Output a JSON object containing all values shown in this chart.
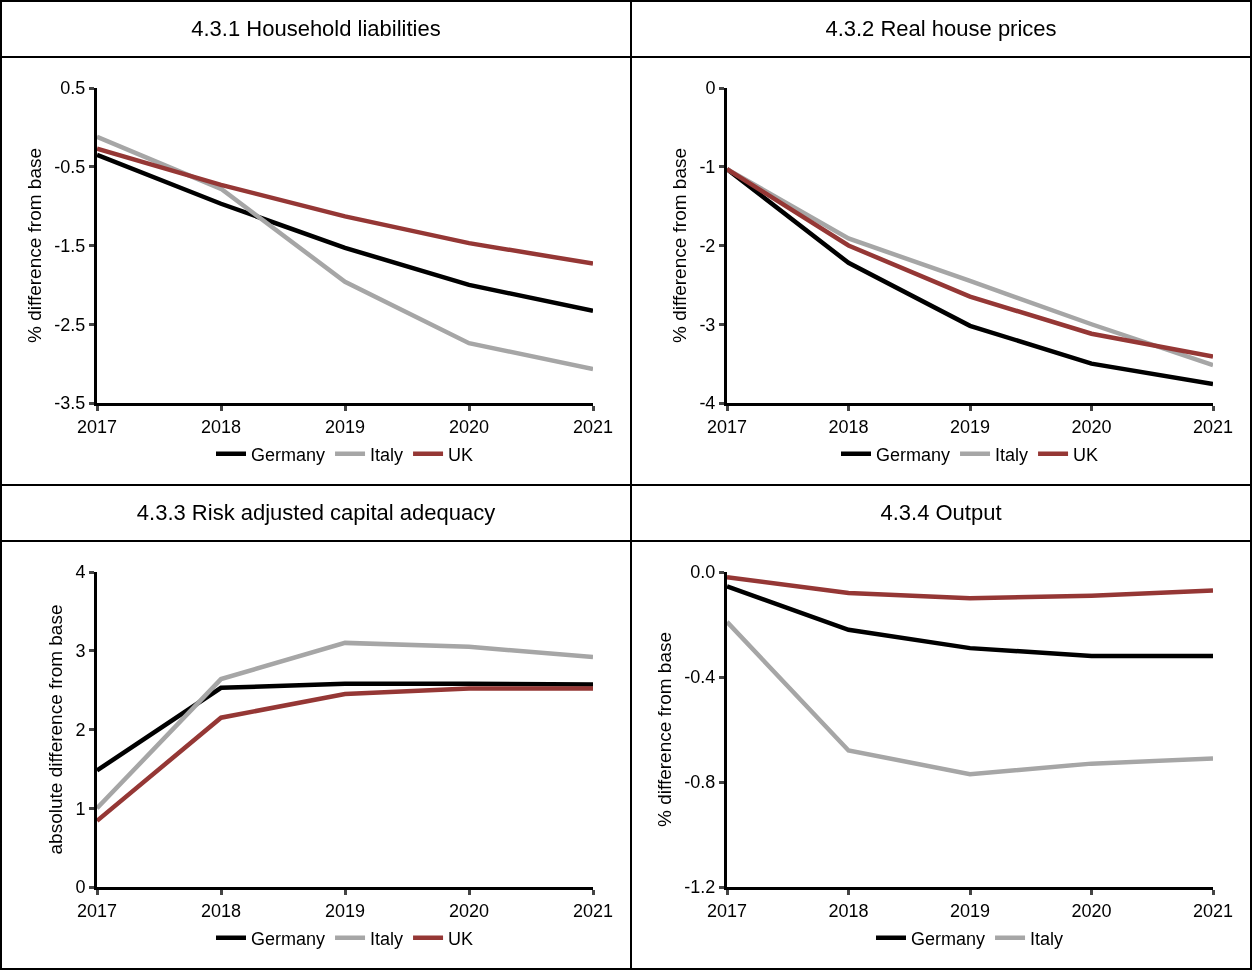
{
  "chart_data": [
    {
      "type": "line",
      "title": "4.3.1 Household liabilities",
      "ylabel": "% difference from base",
      "x": [
        2017,
        2018,
        2019,
        2020,
        2021
      ],
      "xlim": [
        2017,
        2021
      ],
      "xticks": [
        2017,
        2018,
        2019,
        2020,
        2021
      ],
      "ylim": [
        -3.5,
        0.5
      ],
      "yticks": [
        -3.5,
        -2.5,
        -1.5,
        -0.5,
        0.5
      ],
      "legend": "bottom",
      "series": [
        {
          "name": "Germany",
          "color": "#000000",
          "values": [
            -0.35,
            -0.97,
            -1.53,
            -2.0,
            -2.33
          ]
        },
        {
          "name": "Italy",
          "color": "#a6a6a6",
          "values": [
            -0.12,
            -0.78,
            -1.96,
            -2.74,
            -3.07
          ]
        },
        {
          "name": "UK",
          "color": "#953735",
          "values": [
            -0.27,
            -0.73,
            -1.13,
            -1.47,
            -1.73
          ]
        }
      ]
    },
    {
      "type": "line",
      "title": "4.3.2 Real house prices",
      "ylabel": "% difference from base",
      "x": [
        2017,
        2018,
        2019,
        2020,
        2021
      ],
      "xlim": [
        2017,
        2021
      ],
      "xticks": [
        2017,
        2018,
        2019,
        2020,
        2021
      ],
      "ylim": [
        -4,
        0
      ],
      "yticks": [
        -4,
        -3,
        -2,
        -1,
        0
      ],
      "legend": "bottom",
      "series": [
        {
          "name": "Germany",
          "color": "#000000",
          "values": [
            -1.03,
            -2.22,
            -3.02,
            -3.5,
            -3.76
          ]
        },
        {
          "name": "Italy",
          "color": "#a6a6a6",
          "values": [
            -1.03,
            -1.91,
            -2.45,
            -3.0,
            -3.52
          ]
        },
        {
          "name": "UK",
          "color": "#953735",
          "values": [
            -1.03,
            -2.0,
            -2.65,
            -3.12,
            -3.41
          ]
        }
      ]
    },
    {
      "type": "line",
      "title": "4.3.3 Risk adjusted capital adequacy",
      "ylabel": "absolute difference from base",
      "x": [
        2017,
        2018,
        2019,
        2020,
        2021
      ],
      "xlim": [
        2017,
        2021
      ],
      "xticks": [
        2017,
        2018,
        2019,
        2020,
        2021
      ],
      "ylim": [
        0,
        4
      ],
      "yticks": [
        0,
        1,
        2,
        3,
        4
      ],
      "legend": "bottom",
      "series": [
        {
          "name": "Germany",
          "color": "#000000",
          "values": [
            1.48,
            2.53,
            2.58,
            2.58,
            2.57
          ]
        },
        {
          "name": "Italy",
          "color": "#a6a6a6",
          "values": [
            1.0,
            2.64,
            3.1,
            3.05,
            2.92
          ]
        },
        {
          "name": "UK",
          "color": "#953735",
          "values": [
            0.84,
            2.15,
            2.45,
            2.52,
            2.52
          ]
        }
      ]
    },
    {
      "type": "line",
      "title": "4.3.4 Output",
      "ylabel": "% difference from base",
      "x": [
        2017,
        2018,
        2019,
        2020,
        2021
      ],
      "xlim": [
        2017,
        2021
      ],
      "xticks": [
        2017,
        2018,
        2019,
        2020,
        2021
      ],
      "ylim": [
        -1.2,
        0
      ],
      "yticks": [
        -1.2,
        -0.8,
        -0.4,
        {
          "value": 0,
          "label": "0.0"
        }
      ],
      "legend": "bottom",
      "series": [
        {
          "name": "Germany",
          "color": "#000000",
          "values": [
            -0.055,
            -0.22,
            -0.29,
            -0.32,
            -0.32
          ]
        },
        {
          "name": "Italy",
          "color": "#a6a6a6",
          "values": [
            -0.19,
            -0.68,
            -0.77,
            -0.73,
            -0.71
          ]
        },
        {
          "color": "#953735",
          "values": [
            -0.02,
            -0.08,
            -0.1,
            -0.09,
            -0.07
          ]
        }
      ]
    }
  ]
}
